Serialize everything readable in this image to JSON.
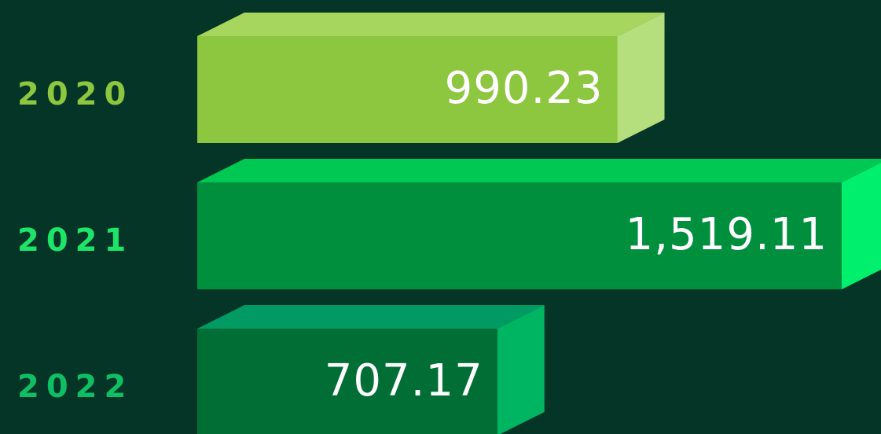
{
  "chart_data": {
    "type": "bar3d",
    "orientation": "horizontal",
    "categories": [
      "2020",
      "2021",
      "2022"
    ],
    "values": [
      990.23,
      1519.11,
      707.17
    ],
    "value_labels": [
      "990.23",
      "1,519.11",
      "707.17"
    ],
    "colors": [
      "#8dc63f",
      "#008f3c",
      "#006e35"
    ],
    "top_colors": [
      "#a6d65e",
      "#00c853",
      "#009a62"
    ],
    "side_colors": [
      "#b5df7c",
      "#00ef6c",
      "#00b562"
    ],
    "label_colors": [
      "#8dc63f",
      "#1de56a",
      "#0fbf63"
    ]
  }
}
